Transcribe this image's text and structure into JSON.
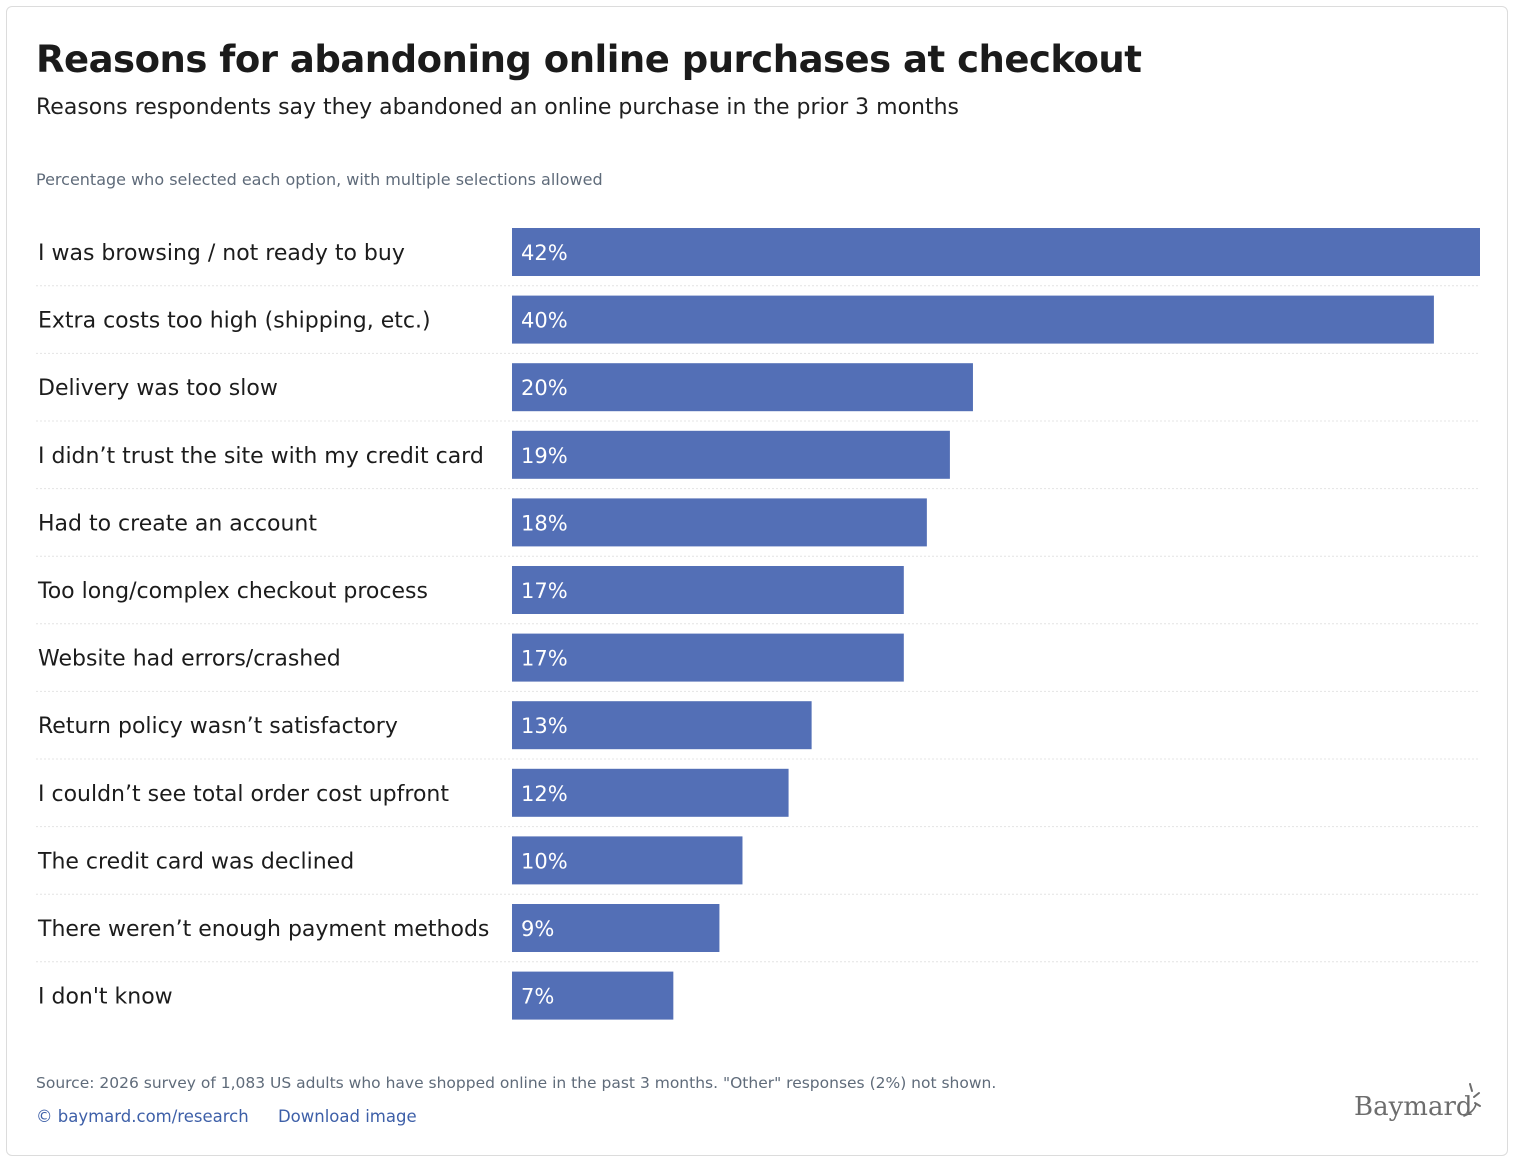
{
  "title": "Reasons for abandoning online purchases at checkout",
  "subtitle": "Reasons respondents say they abandoned an online purchase in the prior 3 months",
  "note": "Percentage who selected each option, with multiple selections allowed",
  "source": "Source: 2026 survey of 1,083 US adults who have shopped online in the past 3 months. \"Other\" responses (2%) not shown.",
  "links": {
    "copyright_symbol": "©",
    "research_link": "baymard.com/research",
    "download_link": "Download image"
  },
  "brand": "Baymard",
  "colors": {
    "bar": "#536fb6",
    "grid": "#e4e4e4",
    "link": "#3d5fa8"
  },
  "chart_data": {
    "type": "bar",
    "orientation": "horizontal",
    "categories": [
      "I was browsing / not ready to buy",
      "Extra costs too high (shipping, etc.)",
      "Delivery was too slow",
      "I didn’t trust the site with my credit card",
      "Had to create an account",
      "Too long/complex checkout process",
      "Website had errors/crashed",
      "Return policy wasn’t satisfactory",
      "I couldn’t see total order cost upfront",
      "The credit card was declined",
      "There weren’t enough payment methods",
      "I don't know"
    ],
    "values": [
      42,
      40,
      20,
      19,
      18,
      17,
      17,
      13,
      12,
      10,
      9,
      7
    ],
    "value_labels": [
      "42%",
      "40%",
      "20%",
      "19%",
      "18%",
      "17%",
      "17%",
      "13%",
      "12%",
      "10%",
      "9%",
      "7%"
    ],
    "unit": "%",
    "xlim": [
      0,
      42
    ],
    "grid": false,
    "legend": "none"
  }
}
